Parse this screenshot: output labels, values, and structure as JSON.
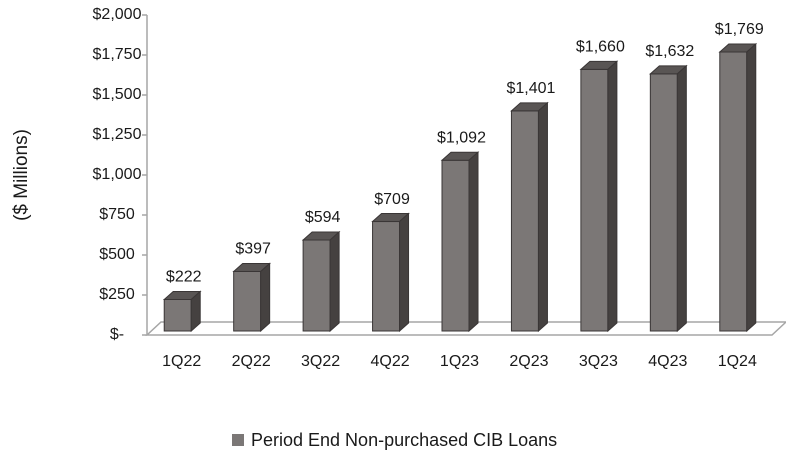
{
  "chart_data": {
    "type": "bar",
    "y_label": "($ Millions)",
    "categories": [
      "1Q22",
      "2Q22",
      "3Q22",
      "4Q22",
      "1Q23",
      "2Q23",
      "3Q23",
      "4Q23",
      "1Q24"
    ],
    "series": [
      {
        "name": "Period End Non-purchased CIB Loans",
        "color": "#7b7776",
        "values": [
          222,
          397,
          594,
          709,
          1092,
          1401,
          1660,
          1632,
          1769
        ],
        "value_labels": [
          "$222",
          "$397",
          "$594",
          "$709",
          "$1,092",
          "$1,401",
          "$1,660",
          "$1,632",
          "$1,769"
        ]
      }
    ],
    "ylim": [
      0,
      2000
    ],
    "yticks": [
      {
        "value": 0,
        "label": "$-"
      },
      {
        "value": 250,
        "label": "$250"
      },
      {
        "value": 500,
        "label": "$500"
      },
      {
        "value": 750,
        "label": "$750"
      },
      {
        "value": 1000,
        "label": "$1,000"
      },
      {
        "value": 1250,
        "label": "$1,250"
      },
      {
        "value": 1500,
        "label": "$1,500"
      },
      {
        "value": 1750,
        "label": "$1,750"
      },
      {
        "value": 2000,
        "label": "$2,000"
      }
    ],
    "legend": "bottom"
  }
}
